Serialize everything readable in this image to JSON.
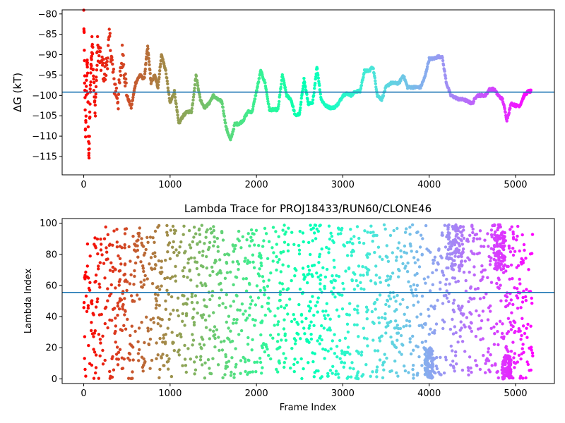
{
  "chart_data": [
    {
      "type": "scatter",
      "title": "",
      "xlabel": "",
      "ylabel": "ΔG (kT)",
      "xlim": [
        -250,
        5450
      ],
      "ylim": [
        -119.5,
        -79
      ],
      "xticks": [
        0,
        1000,
        2000,
        3000,
        4000,
        5000
      ],
      "yticks": [
        -80,
        -85,
        -90,
        -95,
        -100,
        -105,
        -110,
        -115
      ],
      "hline": -99.2,
      "hline_color": "#1f77b4",
      "colormap": "rainbow (red at frame 0 → violet at last frame)",
      "series": [
        {
          "x": [
            0,
            20,
            40,
            60,
            80,
            100,
            130,
            160,
            200,
            250,
            300,
            350,
            400,
            450,
            500,
            550,
            600,
            650,
            700,
            740,
            780,
            820,
            860,
            900,
            950,
            1000,
            1050,
            1100,
            1150,
            1200,
            1250,
            1300,
            1350,
            1400,
            1450,
            1500,
            1550,
            1600,
            1650,
            1700,
            1750,
            1800,
            1850,
            1900,
            1950,
            2000,
            2050,
            2100,
            2150,
            2200,
            2250,
            2300,
            2350,
            2400,
            2450,
            2500,
            2550,
            2600,
            2650,
            2700,
            2750,
            2800,
            2850,
            2900,
            2950,
            3000,
            3050,
            3100,
            3150,
            3200,
            3250,
            3300,
            3350,
            3400,
            3450,
            3500,
            3550,
            3600,
            3650,
            3700,
            3750,
            3800,
            3850,
            3900,
            3950,
            4000,
            4050,
            4100,
            4150,
            4200,
            4250,
            4300,
            4350,
            4400,
            4450,
            4500,
            4550,
            4600,
            4650,
            4700,
            4750,
            4800,
            4850,
            4900,
            4950,
            5000,
            5050,
            5100,
            5150,
            5180
          ],
          "y": [
            -80,
            -110,
            -90,
            -117,
            -95,
            -86,
            -105,
            -88,
            -92,
            -95,
            -86,
            -97,
            -101,
            -89,
            -100,
            -103,
            -97,
            -95,
            -96,
            -88,
            -97,
            -95,
            -98,
            -90,
            -94,
            -102,
            -99,
            -107,
            -105,
            -104,
            -104,
            -95,
            -101,
            -103,
            -102,
            -100,
            -101,
            -101.5,
            -108,
            -111,
            -107,
            -107,
            -106,
            -104,
            -104,
            -99,
            -94,
            -97,
            -103.5,
            -103.5,
            -103.5,
            -95,
            -100,
            -101,
            -105,
            -104.5,
            -96,
            -102,
            -102,
            -93,
            -101,
            -102.5,
            -103,
            -103,
            -102,
            -100,
            -99.5,
            -100,
            -99,
            -99,
            -94,
            -94,
            -93,
            -100,
            -101,
            -98,
            -97,
            -97,
            -97,
            -95,
            -98,
            -98,
            -98,
            -98,
            -95.5,
            -91,
            -91,
            -90.5,
            -90.5,
            -97,
            -100,
            -100.5,
            -101,
            -101,
            -101.5,
            -102,
            -100,
            -100,
            -100,
            -98.5,
            -98.5,
            -100,
            -101,
            -106,
            -102,
            -102.5,
            -102.5,
            -100,
            -99,
            -99
          ]
        }
      ]
    },
    {
      "type": "scatter",
      "title": "Lambda Trace for PROJ18433/RUN60/CLONE46",
      "xlabel": "Frame Index",
      "ylabel": "Lambda Index",
      "xlim": [
        -250,
        5450
      ],
      "ylim": [
        -3,
        103
      ],
      "xticks": [
        0,
        1000,
        2000,
        3000,
        4000,
        5000
      ],
      "yticks": [
        0,
        20,
        40,
        60,
        80,
        100
      ],
      "hline": 55.5,
      "hline_color": "#1f77b4",
      "colormap": "rainbow (red at frame 0 → violet at last frame)",
      "frame_count": 5200,
      "value_range": [
        0,
        99
      ],
      "dense_bands": [
        {
          "x": [
            4200,
            4400
          ],
          "y": [
            70,
            99
          ]
        },
        {
          "x": [
            4750,
            4880
          ],
          "y": [
            70,
            99
          ]
        },
        {
          "x": [
            3950,
            4050
          ],
          "y": [
            0,
            20
          ]
        },
        {
          "x": [
            4850,
            4950
          ],
          "y": [
            0,
            15
          ]
        }
      ]
    }
  ]
}
